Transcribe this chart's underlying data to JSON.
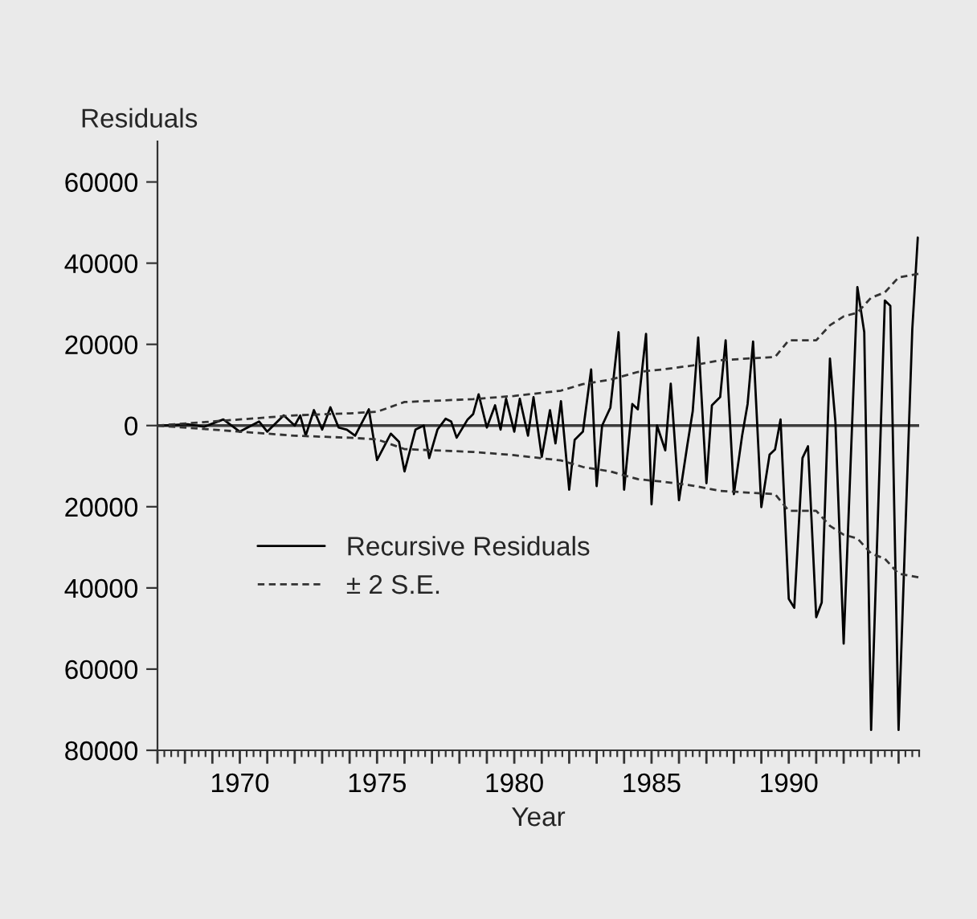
{
  "chart_data": {
    "type": "line",
    "ylabel": "Residuals",
    "xlabel": "Year",
    "xlim": [
      1967,
      1994.75
    ],
    "ylim": [
      -80000,
      70000
    ],
    "xticks": [
      {
        "value": 1967,
        "label": null
      },
      {
        "value": 1968,
        "label": null
      },
      {
        "value": 1969,
        "label": null
      },
      1970,
      {
        "value": 1971,
        "label": null
      },
      {
        "value": 1972,
        "label": null
      },
      {
        "value": 1973,
        "label": null
      },
      {
        "value": 1974,
        "label": null
      },
      1975,
      {
        "value": 1976,
        "label": null
      },
      {
        "value": 1977,
        "label": null
      },
      {
        "value": 1978,
        "label": null
      },
      {
        "value": 1979,
        "label": null
      },
      1980,
      {
        "value": 1981,
        "label": null
      },
      {
        "value": 1982,
        "label": null
      },
      {
        "value": 1983,
        "label": null
      },
      {
        "value": 1984,
        "label": null
      },
      1985,
      {
        "value": 1986,
        "label": null
      },
      {
        "value": 1987,
        "label": null
      },
      {
        "value": 1988,
        "label": null
      },
      {
        "value": 1989,
        "label": null
      },
      1990,
      {
        "value": 1991,
        "label": null
      },
      {
        "value": 1992,
        "label": null
      },
      {
        "value": 1993,
        "label": null
      },
      {
        "value": 1994,
        "label": null
      }
    ],
    "yticks": [
      60000,
      40000,
      20000,
      0,
      {
        "value": -20000,
        "label": "20000"
      },
      {
        "value": -40000,
        "label": "40000"
      },
      {
        "value": -60000,
        "label": "60000"
      },
      {
        "value": -80000,
        "label": "80000"
      }
    ],
    "grid": false,
    "legend": "left",
    "marker": "none",
    "ref_lines": [
      {
        "axis": "y",
        "value": 0,
        "color": "#3c3c3c",
        "line_style": "solid"
      }
    ],
    "series": [
      {
        "name": "Recursive Residuals",
        "color": "#000000",
        "line_style": "solid",
        "x": [
          1967.2,
          1968.1,
          1968.7,
          1969.4,
          1970.0,
          1970.7,
          1971.0,
          1971.6,
          1972.0,
          1972.2,
          1972.4,
          1972.7,
          1973.0,
          1973.3,
          1973.6,
          1973.9,
          1974.2,
          1974.7,
          1975.0,
          1975.5,
          1975.8,
          1976.0,
          1976.4,
          1976.7,
          1976.9,
          1977.2,
          1977.5,
          1977.7,
          1977.9,
          1978.3,
          1978.5,
          1978.7,
          1979.0,
          1979.3,
          1979.5,
          1979.7,
          1980.0,
          1980.2,
          1980.5,
          1980.7,
          1981.0,
          1981.3,
          1981.5,
          1981.7,
          1982.0,
          1982.2,
          1982.5,
          1982.8,
          1983.0,
          1983.2,
          1983.5,
          1983.8,
          1984.0,
          1984.3,
          1984.5,
          1984.8,
          1985.0,
          1985.2,
          1985.5,
          1985.7,
          1986.0,
          1986.3,
          1986.5,
          1986.7,
          1987.0,
          1987.2,
          1987.5,
          1987.7,
          1988.0,
          1988.3,
          1988.5,
          1988.7,
          1989.0,
          1989.3,
          1989.5,
          1989.7,
          1990.0,
          1990.2,
          1990.5,
          1990.7,
          1991.0,
          1991.2,
          1991.5,
          1991.7,
          1992.0,
          1992.5,
          1992.75,
          1993.0,
          1993.5,
          1993.7,
          1994.0,
          1994.5,
          1994.7
        ],
        "values": [
          0,
          300,
          -300,
          1500,
          -1500,
          1000,
          -1500,
          2500,
          0,
          2500,
          -2500,
          3800,
          -1000,
          4500,
          -500,
          -1000,
          -2500,
          4000,
          -8500,
          -2000,
          -4000,
          -11300,
          -1000,
          0,
          -8000,
          -1000,
          1700,
          1000,
          -3000,
          1500,
          2800,
          7700,
          -500,
          5000,
          -1000,
          6600,
          -1500,
          6600,
          -2500,
          7000,
          -7700,
          3800,
          -4400,
          6000,
          -15800,
          -3500,
          -1500,
          13800,
          -14900,
          0,
          4400,
          23000,
          -15800,
          5300,
          4000,
          22600,
          -19400,
          0,
          -6100,
          10300,
          -18400,
          -5000,
          3500,
          21700,
          -14200,
          5000,
          7000,
          21000,
          -16900,
          -2500,
          5300,
          20700,
          -20100,
          -7200,
          -5900,
          1500,
          -42700,
          -44900,
          -8000,
          -5100,
          -47200,
          -43600,
          16500,
          800,
          -53700,
          34100,
          23000,
          -75000,
          30800,
          29500,
          -75000,
          23700,
          46300
        ]
      },
      {
        "name": "± 2 S.E.",
        "color": "#333333",
        "line_style": "dashed",
        "x": [
          1967.0,
          1970.0,
          1972.0,
          1974.0,
          1975.0,
          1976.0,
          1978.5,
          1980.0,
          1981.7,
          1982.5,
          1983.5,
          1984.5,
          1985.5,
          1986.5,
          1987.5,
          1989.5,
          1990.0,
          1991.0,
          1991.5,
          1992.0,
          1992.5,
          1993.0,
          1993.5,
          1994.0,
          1994.75
        ],
        "values": [
          0,
          1500,
          2500,
          3000,
          3400,
          5800,
          6500,
          7300,
          8600,
          10200,
          11300,
          13200,
          13900,
          14800,
          16100,
          16900,
          21000,
          21000,
          24700,
          26900,
          27800,
          31500,
          32800,
          36500,
          37400
        ]
      },
      {
        "color": "#333333",
        "line_style": "dashed",
        "x": [
          1967.0,
          1970.0,
          1972.0,
          1974.0,
          1975.0,
          1976.0,
          1978.5,
          1980.0,
          1981.7,
          1982.5,
          1983.5,
          1984.5,
          1985.5,
          1986.5,
          1987.5,
          1989.5,
          1990.0,
          1991.0,
          1991.5,
          1992.0,
          1992.5,
          1993.0,
          1993.5,
          1994.0,
          1994.75
        ],
        "values": [
          0,
          -1500,
          -2500,
          -3000,
          -3400,
          -5800,
          -6500,
          -7300,
          -8600,
          -10200,
          -11300,
          -13200,
          -13900,
          -14800,
          -16100,
          -16900,
          -21000,
          -21000,
          -24700,
          -26900,
          -27800,
          -31500,
          -32800,
          -36500,
          -37400
        ]
      }
    ]
  }
}
